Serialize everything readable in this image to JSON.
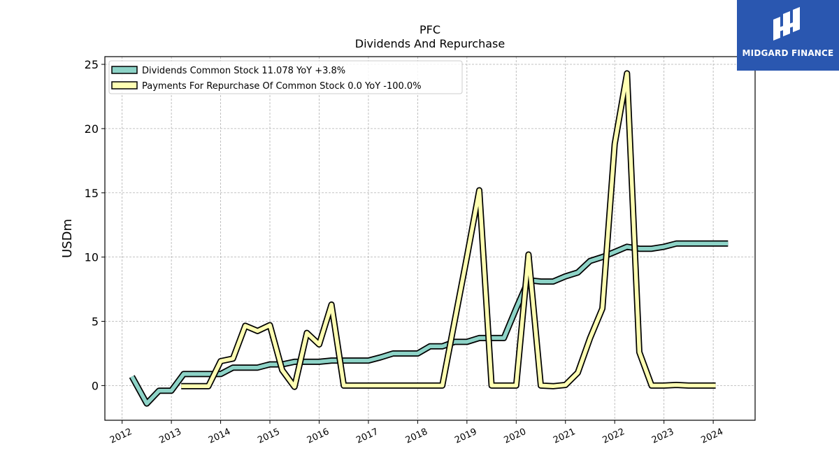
{
  "logo": {
    "text": "MIDGARD FINANCE",
    "bg_color": "#2a57b0",
    "icon": "midgard-logo-icon"
  },
  "chart_data": {
    "type": "line",
    "title": "PFC",
    "subtitle": "Dividends And Repurchase",
    "xlabel": "",
    "ylabel": "USDm",
    "xlim": [
      2011.65,
      2024.85
    ],
    "ylim": [
      -2.7,
      25.6
    ],
    "xticks": [
      2012,
      2013,
      2014,
      2015,
      2016,
      2017,
      2018,
      2019,
      2020,
      2021,
      2022,
      2023,
      2024
    ],
    "yticks": [
      0,
      5,
      10,
      15,
      20,
      25
    ],
    "grid": true,
    "legend_position": "top-left",
    "series": [
      {
        "name": "Dividends Common Stock  11.078 YoY +3.8%",
        "color": "#8dd3c7",
        "x": [
          2012.2,
          2012.5,
          2012.75,
          2013.0,
          2013.25,
          2013.5,
          2013.75,
          2014.0,
          2014.25,
          2014.5,
          2014.75,
          2015.0,
          2015.25,
          2015.5,
          2015.75,
          2016.0,
          2016.25,
          2016.5,
          2016.75,
          2017.0,
          2017.25,
          2017.5,
          2017.75,
          2018.0,
          2018.25,
          2018.5,
          2018.75,
          2019.0,
          2019.25,
          2019.5,
          2019.75,
          2020.0,
          2020.25,
          2020.5,
          2020.75,
          2021.0,
          2021.25,
          2021.5,
          2021.75,
          2022.0,
          2022.25,
          2022.5,
          2022.75,
          2023.0,
          2023.25,
          2023.5,
          2023.75,
          2024.0,
          2024.3
        ],
        "y": [
          0.7,
          -1.4,
          -0.4,
          -0.4,
          0.9,
          0.9,
          0.9,
          0.9,
          1.4,
          1.4,
          1.4,
          1.65,
          1.65,
          1.85,
          1.85,
          1.85,
          1.95,
          1.95,
          1.95,
          1.95,
          2.2,
          2.5,
          2.5,
          2.5,
          3.05,
          3.05,
          3.4,
          3.4,
          3.7,
          3.7,
          3.7,
          6.0,
          8.2,
          8.1,
          8.1,
          8.5,
          8.8,
          9.7,
          10.0,
          10.4,
          10.8,
          10.65,
          10.65,
          10.8,
          11.05,
          11.05,
          11.05,
          11.05,
          11.05
        ]
      },
      {
        "name": "Payments For Repurchase Of Common Stock  0.0 YoY -100.0%",
        "color": "#ffffb3",
        "x": [
          2013.2,
          2013.5,
          2013.75,
          2014.0,
          2014.25,
          2014.5,
          2014.75,
          2015.0,
          2015.25,
          2015.5,
          2015.75,
          2016.0,
          2016.25,
          2016.5,
          2016.75,
          2017.0,
          2017.25,
          2017.5,
          2017.75,
          2018.0,
          2018.25,
          2018.5,
          2018.75,
          2019.0,
          2019.25,
          2019.5,
          2019.75,
          2020.0,
          2020.25,
          2020.5,
          2020.75,
          2021.0,
          2021.25,
          2021.5,
          2021.75,
          2022.0,
          2022.25,
          2022.5,
          2022.75,
          2023.0,
          2023.25,
          2023.5,
          2023.75,
          2024.05
        ],
        "y": [
          -0.05,
          -0.05,
          -0.05,
          1.9,
          2.1,
          4.65,
          4.25,
          4.7,
          1.2,
          -0.1,
          4.1,
          3.2,
          6.3,
          0.0,
          0.0,
          0.0,
          0.0,
          0.0,
          0.0,
          0.0,
          0.0,
          0.0,
          5.0,
          10.0,
          15.2,
          0.0,
          0.0,
          0.0,
          10.2,
          0.0,
          -0.05,
          0.05,
          1.0,
          3.7,
          6.0,
          18.8,
          24.3,
          2.6,
          0.0,
          0.0,
          0.05,
          0.0,
          0.0,
          0.0
        ]
      }
    ]
  }
}
